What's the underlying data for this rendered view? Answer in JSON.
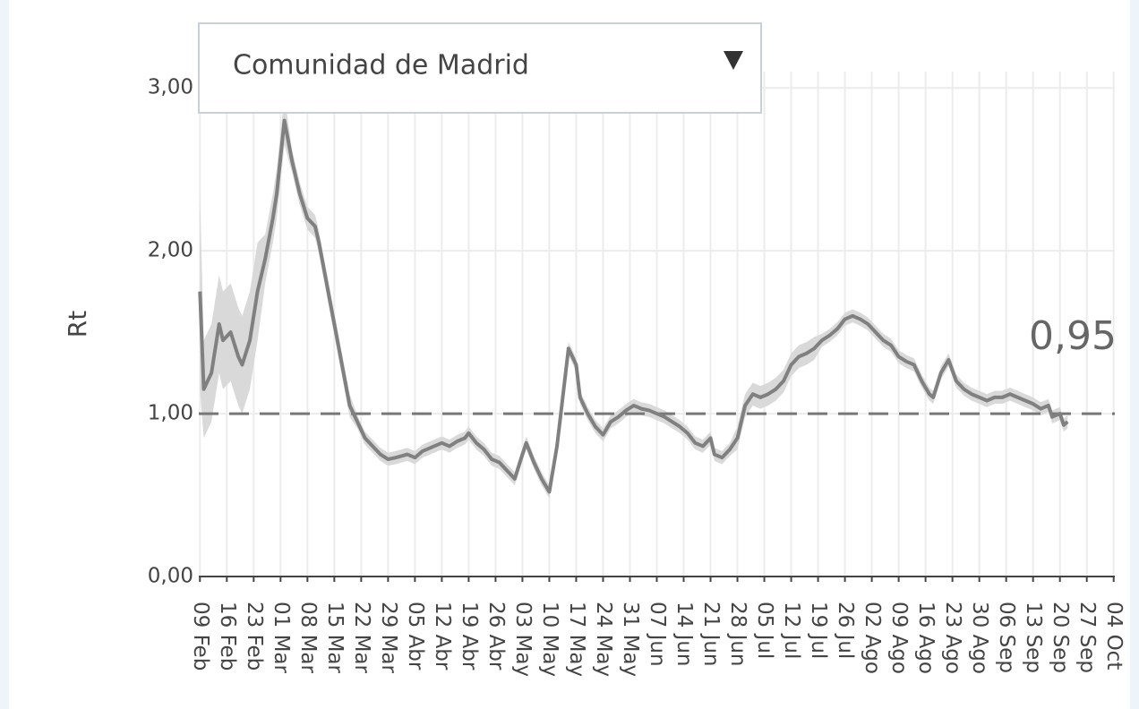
{
  "chart_data": {
    "type": "line",
    "dropdown": "Comunidad de Madrid",
    "y_label": "Rt",
    "annotation": "0,95",
    "color": "#808080",
    "band_color": "#d9d9d9",
    "hline": 1,
    "grid": true,
    "xlim": [
      -0.3,
      238.3
    ],
    "ylim": [
      0,
      3.1
    ],
    "yticks": [
      {
        "value": 0,
        "label": "0,00"
      },
      {
        "value": 1,
        "label": "1,00"
      },
      {
        "value": 2,
        "label": "2,00"
      },
      {
        "value": 3,
        "label": "3,00"
      }
    ],
    "xticks": [
      {
        "value": 0,
        "label": "09 Feb"
      },
      {
        "value": 7,
        "label": "16 Feb"
      },
      {
        "value": 14,
        "label": "23 Feb"
      },
      {
        "value": 21,
        "label": "01 Mar"
      },
      {
        "value": 28,
        "label": "08 Mar"
      },
      {
        "value": 35,
        "label": "15 Mar"
      },
      {
        "value": 42,
        "label": "22 Mar"
      },
      {
        "value": 49,
        "label": "29 Mar"
      },
      {
        "value": 56,
        "label": "05 Abr"
      },
      {
        "value": 63,
        "label": "12 Abr"
      },
      {
        "value": 70,
        "label": "19 Abr"
      },
      {
        "value": 77,
        "label": "26 Abr"
      },
      {
        "value": 84,
        "label": "03 May"
      },
      {
        "value": 91,
        "label": "10 May"
      },
      {
        "value": 98,
        "label": "17 May"
      },
      {
        "value": 105,
        "label": "24 May"
      },
      {
        "value": 112,
        "label": "31 May"
      },
      {
        "value": 119,
        "label": "07 Jun"
      },
      {
        "value": 126,
        "label": "14 Jun"
      },
      {
        "value": 133,
        "label": "21 Jun"
      },
      {
        "value": 140,
        "label": "28 Jun"
      },
      {
        "value": 147,
        "label": "05 Jul"
      },
      {
        "value": 154,
        "label": "12 Jul"
      },
      {
        "value": 161,
        "label": "19 Jul"
      },
      {
        "value": 168,
        "label": "26 Jul"
      },
      {
        "value": 175,
        "label": "02 Ago"
      },
      {
        "value": 182,
        "label": "09 Ago"
      },
      {
        "value": 189,
        "label": "16 Ago"
      },
      {
        "value": 196,
        "label": "23 Ago"
      },
      {
        "value": 203,
        "label": "30 Ago"
      },
      {
        "value": 210,
        "label": "06 Sep"
      },
      {
        "value": 217,
        "label": "13 Sep"
      },
      {
        "value": 224,
        "label": "20 Sep"
      },
      {
        "value": 231,
        "label": "27 Sep"
      },
      {
        "value": 238,
        "label": "04 Oct"
      }
    ],
    "x": [
      0,
      1,
      3,
      5,
      6,
      8,
      10,
      11,
      13,
      15,
      17,
      19,
      20,
      22,
      24,
      26,
      28,
      30,
      31,
      33,
      35,
      37,
      39,
      41,
      43,
      45,
      47,
      49,
      51,
      54,
      56,
      58,
      61,
      63,
      65,
      67,
      69,
      70,
      72,
      74,
      76,
      78,
      80,
      82,
      84,
      85,
      87,
      89,
      91,
      93,
      95,
      96,
      98,
      99,
      101,
      103,
      105,
      107,
      109,
      111,
      113,
      115,
      117,
      119,
      121,
      123,
      125,
      127,
      129,
      131,
      133,
      134,
      136,
      138,
      140,
      142,
      144,
      146,
      148,
      150,
      152,
      154,
      156,
      158,
      160,
      162,
      164,
      166,
      168,
      170,
      172,
      174,
      176,
      178,
      180,
      182,
      184,
      186,
      188,
      190,
      191,
      193,
      195,
      197,
      199,
      201,
      203,
      205,
      207,
      209,
      211,
      213,
      215,
      217,
      219,
      221,
      222,
      224,
      225,
      226
    ],
    "values": [
      1.75,
      1.15,
      1.25,
      1.55,
      1.45,
      1.5,
      1.35,
      1.3,
      1.45,
      1.75,
      1.95,
      2.2,
      2.35,
      2.8,
      2.55,
      2.35,
      2.2,
      2.15,
      2.05,
      1.8,
      1.55,
      1.3,
      1.05,
      0.95,
      0.85,
      0.8,
      0.75,
      0.72,
      0.73,
      0.75,
      0.73,
      0.77,
      0.8,
      0.82,
      0.8,
      0.83,
      0.85,
      0.88,
      0.82,
      0.78,
      0.72,
      0.7,
      0.65,
      0.6,
      0.75,
      0.82,
      0.7,
      0.6,
      0.52,
      0.8,
      1.2,
      1.4,
      1.3,
      1.1,
      1.0,
      0.92,
      0.87,
      0.95,
      0.98,
      1.02,
      1.05,
      1.03,
      1.02,
      1.0,
      0.98,
      0.95,
      0.92,
      0.88,
      0.82,
      0.8,
      0.85,
      0.75,
      0.73,
      0.78,
      0.85,
      1.05,
      1.12,
      1.1,
      1.12,
      1.15,
      1.2,
      1.3,
      1.35,
      1.37,
      1.4,
      1.45,
      1.48,
      1.52,
      1.58,
      1.6,
      1.58,
      1.55,
      1.5,
      1.45,
      1.42,
      1.35,
      1.32,
      1.3,
      1.2,
      1.12,
      1.1,
      1.25,
      1.33,
      1.2,
      1.15,
      1.12,
      1.1,
      1.08,
      1.1,
      1.1,
      1.12,
      1.1,
      1.08,
      1.06,
      1.03,
      1.05,
      0.98,
      1.0,
      0.93,
      0.95
    ],
    "lower": [
      1.15,
      0.85,
      0.95,
      1.25,
      1.15,
      1.2,
      1.05,
      1.0,
      1.15,
      1.45,
      1.8,
      2.05,
      2.2,
      2.65,
      2.48,
      2.28,
      2.13,
      2.08,
      1.98,
      1.73,
      1.48,
      1.23,
      0.98,
      0.91,
      0.81,
      0.76,
      0.71,
      0.68,
      0.69,
      0.71,
      0.69,
      0.73,
      0.76,
      0.78,
      0.76,
      0.79,
      0.81,
      0.84,
      0.78,
      0.74,
      0.68,
      0.66,
      0.61,
      0.56,
      0.71,
      0.78,
      0.66,
      0.56,
      0.48,
      0.76,
      1.16,
      1.36,
      1.26,
      1.06,
      0.96,
      0.88,
      0.83,
      0.91,
      0.94,
      0.98,
      1.01,
      0.99,
      0.98,
      0.96,
      0.94,
      0.91,
      0.88,
      0.84,
      0.78,
      0.76,
      0.81,
      0.71,
      0.69,
      0.74,
      0.78,
      0.98,
      1.05,
      1.03,
      1.05,
      1.08,
      1.13,
      1.23,
      1.28,
      1.3,
      1.33,
      1.41,
      1.44,
      1.48,
      1.54,
      1.56,
      1.54,
      1.51,
      1.46,
      1.41,
      1.38,
      1.31,
      1.28,
      1.26,
      1.16,
      1.08,
      1.06,
      1.21,
      1.29,
      1.16,
      1.11,
      1.08,
      1.06,
      1.04,
      1.06,
      1.06,
      1.08,
      1.06,
      1.04,
      1.02,
      0.99,
      1.01,
      0.94,
      0.96,
      0.89,
      0.91
    ],
    "upper": [
      2.35,
      1.45,
      1.55,
      1.85,
      1.75,
      1.8,
      1.65,
      1.6,
      1.75,
      2.05,
      2.1,
      2.35,
      2.5,
      2.95,
      2.62,
      2.42,
      2.27,
      2.22,
      2.12,
      1.87,
      1.62,
      1.37,
      1.12,
      0.99,
      0.89,
      0.84,
      0.79,
      0.76,
      0.77,
      0.79,
      0.77,
      0.81,
      0.84,
      0.86,
      0.84,
      0.87,
      0.89,
      0.92,
      0.86,
      0.82,
      0.76,
      0.74,
      0.69,
      0.64,
      0.79,
      0.86,
      0.74,
      0.64,
      0.56,
      0.84,
      1.24,
      1.44,
      1.34,
      1.14,
      1.04,
      0.96,
      0.91,
      0.99,
      1.02,
      1.06,
      1.09,
      1.07,
      1.06,
      1.04,
      1.02,
      0.99,
      0.96,
      0.92,
      0.86,
      0.84,
      0.89,
      0.79,
      0.77,
      0.82,
      0.92,
      1.12,
      1.19,
      1.17,
      1.19,
      1.22,
      1.27,
      1.37,
      1.42,
      1.44,
      1.47,
      1.49,
      1.52,
      1.56,
      1.62,
      1.64,
      1.62,
      1.59,
      1.54,
      1.49,
      1.46,
      1.39,
      1.36,
      1.34,
      1.24,
      1.16,
      1.14,
      1.29,
      1.37,
      1.24,
      1.19,
      1.16,
      1.14,
      1.12,
      1.14,
      1.14,
      1.16,
      1.14,
      1.12,
      1.1,
      1.07,
      1.09,
      1.02,
      1.04,
      0.97,
      0.99
    ]
  }
}
